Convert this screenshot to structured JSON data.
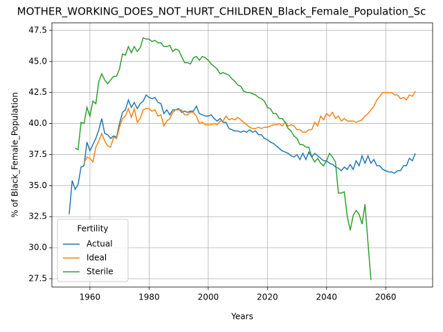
{
  "chart_data": {
    "type": "line",
    "title": "MOTHER_WORKING_DOES_NOT_HURT_CHILDREN_Black_Female_Population_Sc",
    "xlabel": "Years",
    "ylabel": "% of Black_Female_Population",
    "legend_title": "Fertility",
    "legend_loc": "lower left",
    "grid": true,
    "x": [
      1953,
      1954,
      1955,
      1956,
      1957,
      1958,
      1959,
      1960,
      1961,
      1962,
      1963,
      1964,
      1965,
      1966,
      1967,
      1968,
      1969,
      1970,
      1971,
      1972,
      1973,
      1974,
      1975,
      1976,
      1977,
      1978,
      1979,
      1980,
      1981,
      1982,
      1983,
      1984,
      1985,
      1986,
      1987,
      1988,
      1989,
      1990,
      1991,
      1992,
      1993,
      1994,
      1995,
      1996,
      1997,
      1998,
      1999,
      2000,
      2001,
      2002,
      2003,
      2004,
      2005,
      2006,
      2007,
      2008,
      2009,
      2010,
      2011,
      2012,
      2013,
      2014,
      2015,
      2016,
      2017,
      2018,
      2019,
      2020,
      2021,
      2022,
      2023,
      2024,
      2025,
      2026,
      2027,
      2028,
      2029,
      2030,
      2031,
      2032,
      2033,
      2034,
      2035,
      2036,
      2037,
      2038,
      2039,
      2040,
      2041,
      2042,
      2043,
      2044,
      2045,
      2046,
      2047,
      2048,
      2049,
      2050,
      2051,
      2052,
      2053,
      2054,
      2055,
      2056,
      2057,
      2058,
      2059,
      2060,
      2061,
      2062,
      2063,
      2064,
      2065,
      2066,
      2067,
      2068,
      2069,
      2070
    ],
    "series": [
      {
        "name": "Actual",
        "color": "#1f77b4",
        "values": [
          32.7,
          35.4,
          34.7,
          35.1,
          36.5,
          36.6,
          38.5,
          37.8,
          38.3,
          38.8,
          39.5,
          40.4,
          39.2,
          39.1,
          38.8,
          39.0,
          38.9,
          40.0,
          40.9,
          41.1,
          41.9,
          41.3,
          41.7,
          41.2,
          41.6,
          41.8,
          42.3,
          42.1,
          42.0,
          42.1,
          41.7,
          41.6,
          40.8,
          41.1,
          40.7,
          41.1,
          41.1,
          41.2,
          40.9,
          41.0,
          40.9,
          41.0,
          41.0,
          41.4,
          40.8,
          40.7,
          40.6,
          40.6,
          40.7,
          40.4,
          40.2,
          40.4,
          40.1,
          40.1,
          39.6,
          39.5,
          39.4,
          39.4,
          39.3,
          39.4,
          39.3,
          39.5,
          39.3,
          39.4,
          39.1,
          39.1,
          38.8,
          38.7,
          38.5,
          38.4,
          38.2,
          38.0,
          37.8,
          37.7,
          37.6,
          37.4,
          37.3,
          37.5,
          37.1,
          37.6,
          37.1,
          37.7,
          37.3,
          37.6,
          37.4,
          37.2,
          37.0,
          37.0,
          36.8,
          36.7,
          36.5,
          36.4,
          36.2,
          36.5,
          36.3,
          36.7,
          36.3,
          37.0,
          36.6,
          37.4,
          36.8,
          37.4,
          36.8,
          37.1,
          36.6,
          36.6,
          36.3,
          36.2,
          36.1,
          36.1,
          36.0,
          36.2,
          36.2,
          36.6,
          36.6,
          37.2,
          37.0,
          37.6
        ]
      },
      {
        "name": "Ideal",
        "color": "#ff7f0e",
        "values": [
          null,
          null,
          null,
          null,
          null,
          36.8,
          37.3,
          37.2,
          36.9,
          38.1,
          38.6,
          39.2,
          38.6,
          38.2,
          38.1,
          38.9,
          38.8,
          39.7,
          40.4,
          40.6,
          41.2,
          40.5,
          41.2,
          40.1,
          40.4,
          41.1,
          41.2,
          41.2,
          41.0,
          41.1,
          40.6,
          40.7,
          39.8,
          40.2,
          40.4,
          40.9,
          41.1,
          41.1,
          41.1,
          40.7,
          40.7,
          40.9,
          40.9,
          40.6,
          40.0,
          40.1,
          39.9,
          39.9,
          39.9,
          40.0,
          39.9,
          40.2,
          40.2,
          40.6,
          40.3,
          40.4,
          40.3,
          40.5,
          40.3,
          40.1,
          39.9,
          39.7,
          39.6,
          39.6,
          39.7,
          39.6,
          39.7,
          39.7,
          39.8,
          39.9,
          39.9,
          40.0,
          39.8,
          40.1,
          39.8,
          39.9,
          39.8,
          39.5,
          39.5,
          39.3,
          39.3,
          39.5,
          39.5,
          40.1,
          39.8,
          40.6,
          40.3,
          40.8,
          40.6,
          40.9,
          40.4,
          40.6,
          40.2,
          40.4,
          40.2,
          40.2,
          40.2,
          40.1,
          40.2,
          40.3,
          40.6,
          40.8,
          41.1,
          41.4,
          41.9,
          42.2,
          42.5,
          42.5,
          42.5,
          42.5,
          42.3,
          42.3,
          42.0,
          42.1,
          41.9,
          42.3,
          42.2,
          42.6
        ]
      },
      {
        "name": "Sterile",
        "color": "#2ca02c",
        "values": [
          null,
          null,
          38.0,
          37.9,
          40.1,
          40.0,
          41.3,
          40.6,
          41.8,
          41.6,
          43.4,
          44.0,
          43.5,
          43.2,
          43.5,
          43.8,
          43.8,
          44.4,
          45.6,
          45.5,
          46.2,
          45.7,
          46.2,
          45.8,
          46.1,
          46.9,
          46.8,
          46.8,
          46.6,
          46.7,
          46.5,
          46.5,
          46.2,
          46.2,
          46.3,
          45.8,
          46.0,
          45.9,
          45.4,
          44.9,
          44.9,
          44.8,
          45.3,
          45.4,
          45.1,
          45.4,
          45.3,
          45.1,
          44.8,
          44.6,
          44.4,
          44.0,
          44.1,
          44.0,
          43.9,
          43.6,
          43.4,
          43.1,
          43.0,
          42.6,
          42.5,
          42.5,
          42.4,
          42.3,
          42.1,
          42.0,
          41.8,
          41.3,
          41.2,
          40.8,
          40.8,
          40.4,
          40.4,
          40.1,
          39.6,
          39.4,
          39.0,
          38.8,
          38.3,
          38.3,
          38.1,
          38.1,
          37.3,
          36.9,
          37.2,
          36.8,
          36.6,
          37.0,
          37.6,
          37.3,
          36.9,
          34.4,
          34.4,
          34.5,
          32.5,
          31.4,
          32.6,
          33.0,
          32.7,
          31.9,
          33.5,
          30.4,
          27.4,
          null,
          null,
          null,
          null,
          null,
          null,
          null,
          null,
          null,
          null,
          null,
          null,
          null,
          null,
          null
        ]
      }
    ],
    "xlim": [
      1947.15,
      2075.85
    ],
    "xticks": [
      1960,
      1980,
      2000,
      2020,
      2040,
      2060
    ],
    "ylim": [
      26.83,
      48.11
    ],
    "yticks": [
      27.5,
      {
        "value": 30,
        "label": "30.0"
      },
      32.5,
      {
        "value": 35,
        "label": "35.0"
      },
      37.5,
      {
        "value": 40,
        "label": "40.0"
      },
      42.5,
      {
        "value": 45,
        "label": "45.0"
      },
      47.5
    ]
  }
}
